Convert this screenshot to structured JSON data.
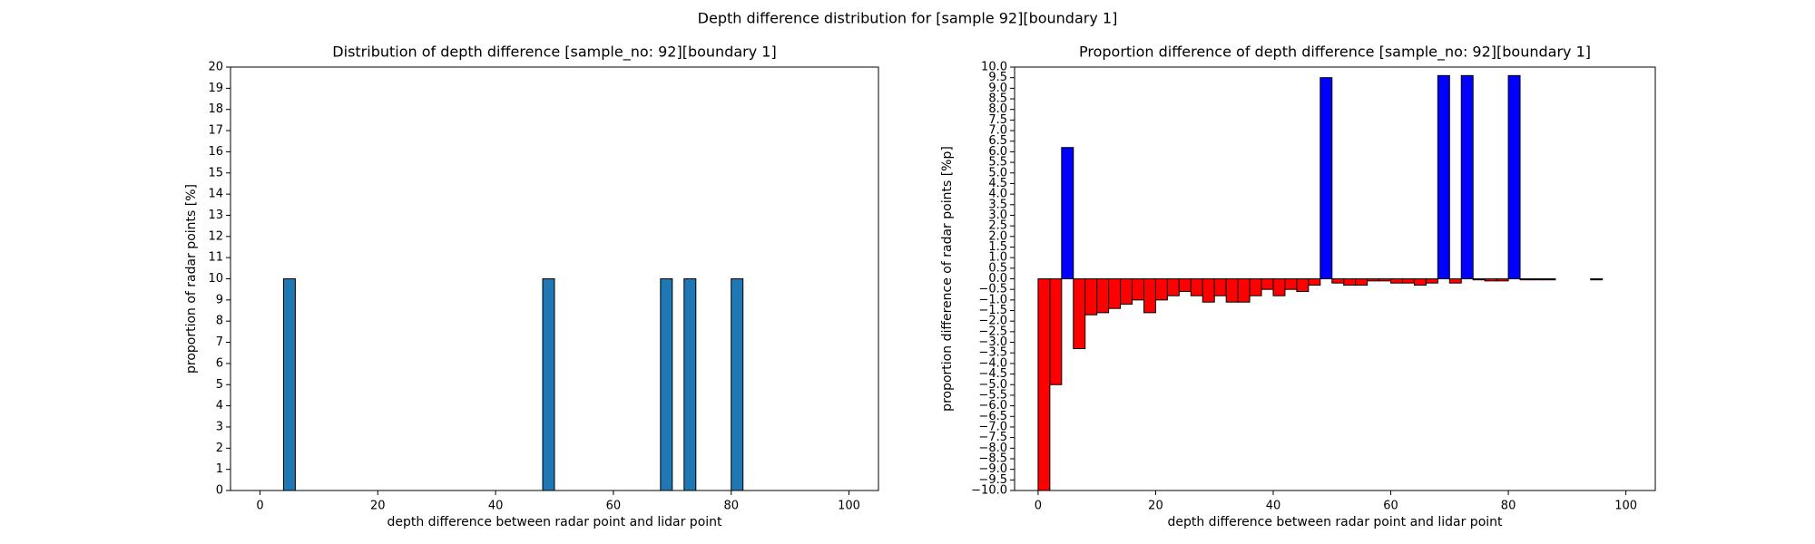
{
  "title": "Depth difference distribution for [sample 92][boundary 1]",
  "chart_data": [
    {
      "type": "histogram",
      "title": "Distribution of depth difference [sample_no: 92][boundary 1]",
      "x_label": "depth difference between radar point and lidar point",
      "y_label": "proportion of radar points [%]",
      "bins": [
        0,
        2,
        4,
        6,
        8,
        10,
        12,
        14,
        16,
        18,
        20,
        22,
        24,
        26,
        28,
        30,
        32,
        34,
        36,
        38,
        40,
        42,
        44,
        46,
        48,
        50,
        52,
        54,
        56,
        58,
        60,
        62,
        64,
        66,
        68,
        70,
        72,
        74,
        76,
        78,
        80,
        82,
        84,
        86,
        88,
        90,
        92,
        94,
        96,
        98,
        100
      ],
      "values": [
        0,
        0,
        10,
        0,
        0,
        0,
        0,
        0,
        0,
        0,
        0,
        0,
        0,
        0,
        0,
        0,
        0,
        0,
        0,
        0,
        0,
        0,
        0,
        0,
        10,
        0,
        0,
        0,
        0,
        0,
        0,
        0,
        0,
        0,
        10,
        0,
        10,
        0,
        0,
        0,
        10,
        0,
        0,
        0,
        0,
        0,
        0,
        0,
        0,
        0
      ],
      "color": "#1f77b4",
      "edgecolor": "#000000",
      "xlim": [
        -5,
        105
      ],
      "xticks": [
        0,
        20,
        40,
        60,
        80,
        100
      ],
      "ylim": [
        0,
        20
      ],
      "yticks": [
        0,
        1,
        2,
        3,
        4,
        5,
        6,
        7,
        8,
        9,
        10,
        11,
        12,
        13,
        14,
        15,
        16,
        17,
        18,
        19,
        20
      ]
    },
    {
      "type": "histogram",
      "title": "Proportion difference of depth difference [sample_no: 92][boundary 1]",
      "x_label": "depth difference between radar point and lidar point",
      "y_label": "proportion difference of radar points [%p]",
      "bins": [
        0,
        2,
        4,
        6,
        8,
        10,
        12,
        14,
        16,
        18,
        20,
        22,
        24,
        26,
        28,
        30,
        32,
        34,
        36,
        38,
        40,
        42,
        44,
        46,
        48,
        50,
        52,
        54,
        56,
        58,
        60,
        62,
        64,
        66,
        68,
        70,
        72,
        74,
        76,
        78,
        80,
        82,
        84,
        86,
        88,
        90,
        92,
        94,
        96,
        98,
        100
      ],
      "values": [
        -10,
        -5.0,
        6.2,
        -3.3,
        -1.7,
        -1.6,
        -1.4,
        -1.2,
        -1.0,
        -1.6,
        -1.0,
        -0.8,
        -0.6,
        -0.8,
        -1.1,
        -0.8,
        -1.1,
        -1.1,
        -0.8,
        -0.5,
        -0.8,
        -0.5,
        -0.6,
        -0.3,
        9.5,
        -0.2,
        -0.3,
        -0.3,
        -0.1,
        -0.1,
        -0.2,
        -0.2,
        -0.3,
        -0.2,
        9.6,
        -0.2,
        9.6,
        -0.05,
        -0.1,
        -0.1,
        9.6,
        -0.05,
        -0.05,
        -0.05,
        0,
        0,
        0,
        -0.05,
        0,
        0
      ],
      "positive_color": "#0000ff",
      "negative_color": "#ff0000",
      "edgecolor": "#000000",
      "xlim": [
        -4,
        105
      ],
      "xticks": [
        0,
        20,
        40,
        60,
        80,
        100
      ],
      "ylim": [
        -10,
        10
      ],
      "yticks": [
        {
          "value": -10,
          "label": "−10.0"
        },
        {
          "value": -9.5,
          "label": "−9.5"
        },
        {
          "value": -9,
          "label": "−9.0"
        },
        {
          "value": -8.5,
          "label": "−8.5"
        },
        {
          "value": -8,
          "label": "−8.0"
        },
        {
          "value": -7.5,
          "label": "−7.5"
        },
        {
          "value": -7,
          "label": "−7.0"
        },
        {
          "value": -6.5,
          "label": "−6.5"
        },
        {
          "value": -6,
          "label": "−6.0"
        },
        {
          "value": -5.5,
          "label": "−5.5"
        },
        {
          "value": -5,
          "label": "−5.0"
        },
        {
          "value": -4.5,
          "label": "−4.5"
        },
        {
          "value": -4,
          "label": "−4.0"
        },
        {
          "value": -3.5,
          "label": "−3.5"
        },
        {
          "value": -3,
          "label": "−3.0"
        },
        {
          "value": -2.5,
          "label": "−2.5"
        },
        {
          "value": -2,
          "label": "−2.0"
        },
        {
          "value": -1.5,
          "label": "−1.5"
        },
        {
          "value": -1,
          "label": "−1.0"
        },
        {
          "value": -0.5,
          "label": "−0.5"
        },
        {
          "value": 0,
          "label": "0.0"
        },
        {
          "value": 0.5,
          "label": "0.5"
        },
        {
          "value": 1,
          "label": "1.0"
        },
        {
          "value": 1.5,
          "label": "1.5"
        },
        {
          "value": 2,
          "label": "2.0"
        },
        {
          "value": 2.5,
          "label": "2.5"
        },
        {
          "value": 3,
          "label": "3.0"
        },
        {
          "value": 3.5,
          "label": "3.5"
        },
        {
          "value": 4,
          "label": "4.0"
        },
        {
          "value": 4.5,
          "label": "4.5"
        },
        {
          "value": 5,
          "label": "5.0"
        },
        {
          "value": 5.5,
          "label": "5.5"
        },
        {
          "value": 6,
          "label": "6.0"
        },
        {
          "value": 6.5,
          "label": "6.5"
        },
        {
          "value": 7,
          "label": "7.0"
        },
        {
          "value": 7.5,
          "label": "7.5"
        },
        {
          "value": 8,
          "label": "8.0"
        },
        {
          "value": 8.5,
          "label": "8.5"
        },
        {
          "value": 9,
          "label": "9.0"
        },
        {
          "value": 9.5,
          "label": "9.5"
        },
        {
          "value": 10,
          "label": "10.0"
        }
      ]
    }
  ]
}
